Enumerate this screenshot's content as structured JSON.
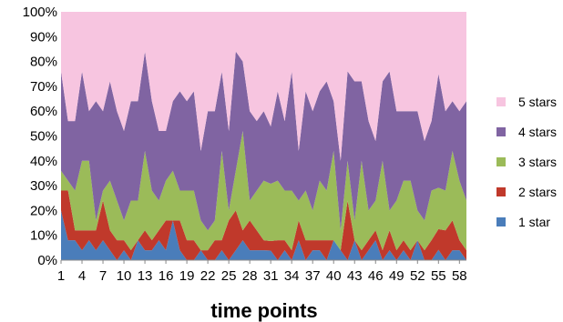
{
  "chart_data": {
    "type": "area",
    "stacking": "percent",
    "xlabel": "time points",
    "ylabel": "",
    "title": "",
    "ylim": [
      0,
      100
    ],
    "y_tick_labels": [
      "0%",
      "10%",
      "20%",
      "30%",
      "40%",
      "50%",
      "60%",
      "70%",
      "80%",
      "90%",
      "100%"
    ],
    "x_tick_labels": [
      "1",
      "4",
      "7",
      "10",
      "13",
      "16",
      "19",
      "22",
      "25",
      "28",
      "31",
      "34",
      "37",
      "40",
      "43",
      "46",
      "49",
      "52",
      "55",
      "58"
    ],
    "x": [
      1,
      2,
      3,
      4,
      5,
      6,
      7,
      8,
      9,
      10,
      11,
      12,
      13,
      14,
      15,
      16,
      17,
      18,
      19,
      20,
      21,
      22,
      23,
      24,
      25,
      26,
      27,
      28,
      29,
      30,
      31,
      32,
      33,
      34,
      35,
      36,
      37,
      38,
      39,
      40,
      41,
      42,
      43,
      44,
      45,
      46,
      47,
      48,
      49,
      50,
      51,
      52,
      53,
      54,
      55,
      56,
      57,
      58,
      59
    ],
    "legend_position": "right",
    "series": [
      {
        "name": "1 star",
        "color": "#4a7dba",
        "values": [
          20,
          8,
          8,
          4,
          8,
          4,
          8,
          4,
          0,
          4,
          0,
          8,
          4,
          4,
          8,
          4,
          16,
          4,
          0,
          0,
          4,
          0,
          0,
          4,
          0,
          4,
          8,
          4,
          4,
          4,
          4,
          0,
          4,
          0,
          8,
          0,
          4,
          4,
          0,
          8,
          4,
          0,
          8,
          0,
          4,
          8,
          0,
          4,
          0,
          4,
          0,
          8,
          0,
          0,
          4,
          0,
          4,
          4,
          0
        ]
      },
      {
        "name": "2 stars",
        "color": "#c0392b",
        "values": [
          8,
          20,
          4,
          8,
          4,
          8,
          16,
          8,
          8,
          4,
          4,
          0,
          8,
          4,
          4,
          12,
          0,
          12,
          8,
          8,
          0,
          4,
          8,
          4,
          16,
          16,
          4,
          12,
          8,
          4,
          4,
          8,
          4,
          4,
          8,
          8,
          4,
          4,
          8,
          0,
          0,
          24,
          0,
          4,
          4,
          4,
          4,
          8,
          4,
          4,
          4,
          0,
          4,
          8,
          8,
          12,
          12,
          4,
          4
        ]
      },
      {
        "name": "3 stars",
        "color": "#9bbb59",
        "values": [
          8,
          4,
          16,
          28,
          28,
          4,
          4,
          20,
          16,
          8,
          20,
          16,
          32,
          20,
          12,
          16,
          20,
          12,
          20,
          20,
          12,
          8,
          8,
          36,
          4,
          16,
          40,
          8,
          16,
          24,
          24,
          24,
          20,
          24,
          8,
          20,
          12,
          24,
          20,
          36,
          8,
          16,
          8,
          36,
          12,
          12,
          36,
          8,
          20,
          24,
          28,
          12,
          12,
          20,
          16,
          16,
          28,
          24,
          20
        ]
      },
      {
        "name": "4 stars",
        "color": "#8064a2",
        "values": [
          40,
          24,
          28,
          36,
          20,
          48,
          32,
          40,
          36,
          36,
          40,
          40,
          40,
          36,
          28,
          20,
          28,
          40,
          36,
          40,
          28,
          48,
          44,
          32,
          32,
          48,
          28,
          36,
          28,
          28,
          24,
          36,
          28,
          48,
          20,
          40,
          40,
          36,
          44,
          20,
          28,
          36,
          56,
          32,
          36,
          24,
          32,
          56,
          36,
          28,
          28,
          40,
          32,
          28,
          44,
          32,
          20,
          28,
          40
        ]
      },
      {
        "name": "5 stars",
        "color": "#f7c5e0",
        "values": [
          24,
          44,
          44,
          24,
          40,
          36,
          40,
          28,
          40,
          48,
          36,
          36,
          16,
          36,
          48,
          48,
          36,
          32,
          36,
          32,
          56,
          40,
          40,
          24,
          48,
          16,
          20,
          40,
          44,
          40,
          48,
          32,
          44,
          24,
          56,
          32,
          40,
          32,
          28,
          36,
          60,
          24,
          28,
          28,
          44,
          52,
          28,
          24,
          40,
          40,
          40,
          40,
          52,
          44,
          24,
          40,
          36,
          40,
          36
        ]
      }
    ]
  }
}
